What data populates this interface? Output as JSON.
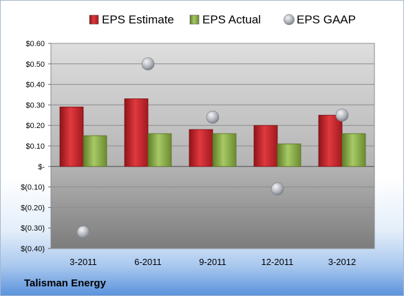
{
  "company": "Talisman Energy",
  "chart_data": {
    "type": "bar",
    "categories": [
      "3-2011",
      "6-2011",
      "9-2011",
      "12-2011",
      "3-2012"
    ],
    "series": [
      {
        "name": "EPS Estimate",
        "type": "bar",
        "color": "#c0282d",
        "values": [
          0.29,
          0.33,
          0.18,
          0.2,
          0.25
        ]
      },
      {
        "name": "EPS Actual",
        "type": "bar",
        "color": "#8aad47",
        "values": [
          0.15,
          0.16,
          0.16,
          0.11,
          0.16
        ]
      },
      {
        "name": "EPS GAAP",
        "type": "scatter",
        "color": "#b8bcc4",
        "values": [
          -0.32,
          0.5,
          0.24,
          -0.11,
          0.25
        ]
      }
    ],
    "ylim": [
      -0.4,
      0.6
    ],
    "yticks": [
      0.6,
      0.5,
      0.4,
      0.3,
      0.2,
      0.1,
      0.0,
      -0.1,
      -0.2,
      -0.3,
      -0.4
    ],
    "ytick_labels": [
      "$0.60",
      "$0.50",
      "$0.40",
      "$0.30",
      "$0.20",
      "$0.10",
      "$-",
      "$(0.10)",
      "$(0.20)",
      "$(0.30)",
      "$(0.40)"
    ],
    "legend_position": "top",
    "grid": true
  }
}
